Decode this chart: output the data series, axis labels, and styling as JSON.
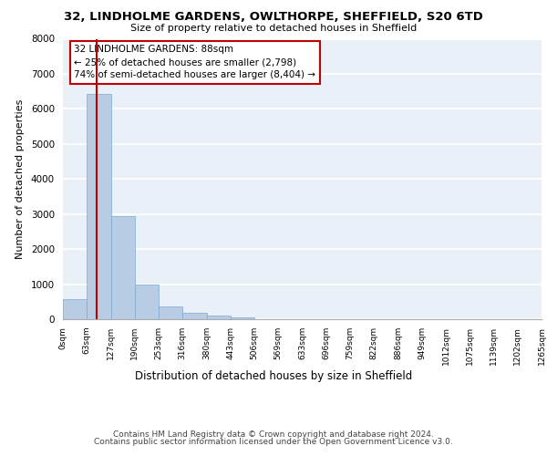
{
  "title": "32, LINDHOLME GARDENS, OWLTHORPE, SHEFFIELD, S20 6TD",
  "subtitle": "Size of property relative to detached houses in Sheffield",
  "xlabel": "Distribution of detached houses by size in Sheffield",
  "ylabel": "Number of detached properties",
  "bin_edges": [
    0,
    63,
    127,
    190,
    253,
    316,
    380,
    443,
    506,
    569,
    633,
    696,
    759,
    822,
    886,
    949,
    1012,
    1075,
    1139,
    1202,
    1265
  ],
  "bin_labels": [
    "0sqm",
    "63sqm",
    "127sqm",
    "190sqm",
    "253sqm",
    "316sqm",
    "380sqm",
    "443sqm",
    "506sqm",
    "569sqm",
    "633sqm",
    "696sqm",
    "759sqm",
    "822sqm",
    "886sqm",
    "949sqm",
    "1012sqm",
    "1075sqm",
    "1139sqm",
    "1202sqm",
    "1265sqm"
  ],
  "bar_heights": [
    560,
    6420,
    2950,
    980,
    375,
    175,
    95,
    65,
    0,
    0,
    0,
    0,
    0,
    0,
    0,
    0,
    0,
    0,
    0,
    0
  ],
  "bar_color": "#b8cce4",
  "bar_edge_color": "#7fa8d0",
  "property_value": 88,
  "property_line_color": "#c00000",
  "annotation_text": "32 LINDHOLME GARDENS: 88sqm\n← 25% of detached houses are smaller (2,798)\n74% of semi-detached houses are larger (8,404) →",
  "annotation_box_color": "#ffffff",
  "annotation_box_edge": "#c00000",
  "ylim": [
    0,
    8000
  ],
  "yticks": [
    0,
    1000,
    2000,
    3000,
    4000,
    5000,
    6000,
    7000,
    8000
  ],
  "footer_line1": "Contains HM Land Registry data © Crown copyright and database right 2024.",
  "footer_line2": "Contains public sector information licensed under the Open Government Licence v3.0.",
  "bg_color": "#eaf0f8",
  "grid_color": "#ffffff",
  "fig_bg": "#ffffff"
}
